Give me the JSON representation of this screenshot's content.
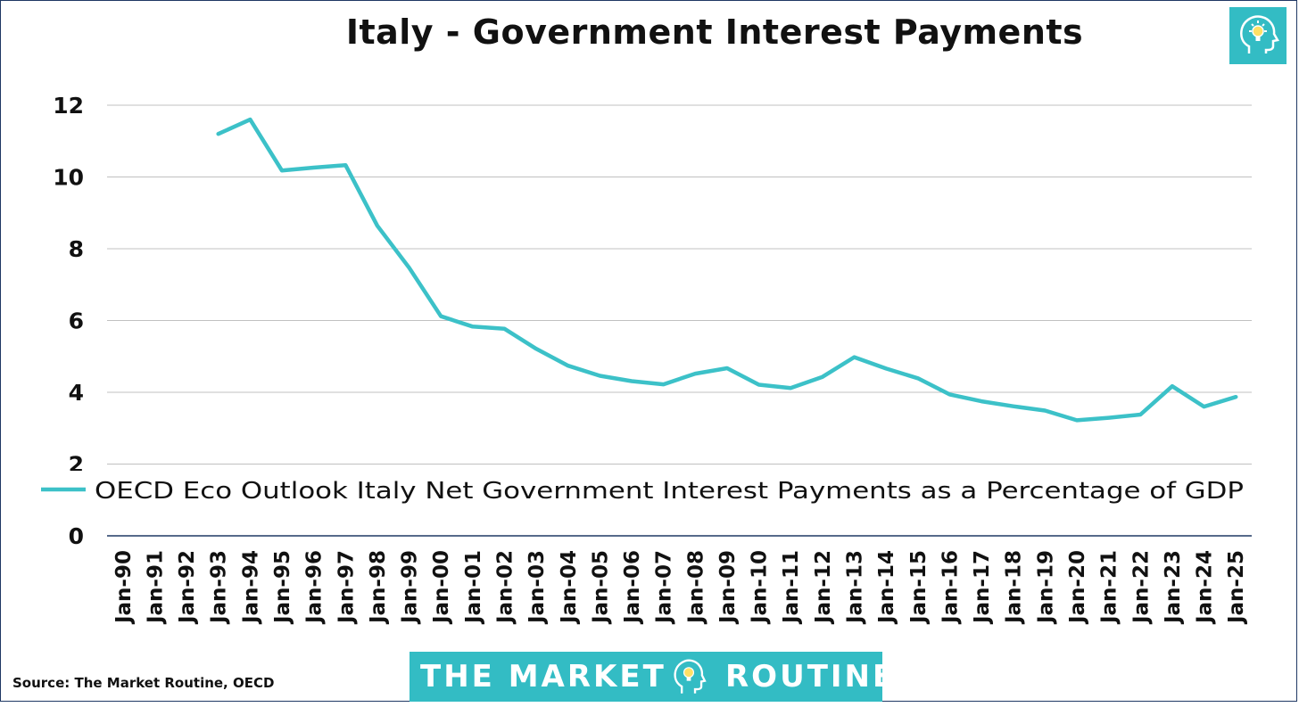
{
  "title": "Italy - Government Interest Payments",
  "source": "Source: The Market Routine, OECD",
  "brand": {
    "left": "THE MARKET",
    "right": "ROUTINE"
  },
  "colors": {
    "series": "#3cc1c8",
    "brand": "#33bcc4",
    "grid": "#c0c0c0",
    "axis": "#1f3864"
  },
  "icons": [
    "head-lightbulb-icon"
  ],
  "chart_data": {
    "type": "line",
    "title": "Italy - Government Interest Payments",
    "xlabel": "",
    "ylabel": "",
    "ylim": [
      0,
      12
    ],
    "yticks": [
      0,
      2,
      4,
      6,
      8,
      10,
      12
    ],
    "grid": true,
    "legend": "inside-bottom",
    "categories": [
      "Jan-90",
      "Jan-91",
      "Jan-92",
      "Jan-93",
      "Jan-94",
      "Jan-95",
      "Jan-96",
      "Jan-97",
      "Jan-98",
      "Jan-99",
      "Jan-00",
      "Jan-01",
      "Jan-02",
      "Jan-03",
      "Jan-04",
      "Jan-05",
      "Jan-06",
      "Jan-07",
      "Jan-08",
      "Jan-09",
      "Jan-10",
      "Jan-11",
      "Jan-12",
      "Jan-13",
      "Jan-14",
      "Jan-15",
      "Jan-16",
      "Jan-17",
      "Jan-18",
      "Jan-19",
      "Jan-20",
      "Jan-21",
      "Jan-22",
      "Jan-23",
      "Jan-24",
      "Jan-25"
    ],
    "series": [
      {
        "name": "OECD Eco Outlook Italy Net Government Interest Payments as a Percentage of GDP",
        "values": [
          null,
          null,
          null,
          11.2,
          11.6,
          10.18,
          10.26,
          10.33,
          8.64,
          7.47,
          6.12,
          5.83,
          5.77,
          5.21,
          4.74,
          4.46,
          4.31,
          4.22,
          4.52,
          4.67,
          4.21,
          4.12,
          4.43,
          4.98,
          4.66,
          4.39,
          3.94,
          3.75,
          3.61,
          3.49,
          3.22,
          3.29,
          3.38,
          4.17,
          3.6,
          3.87
        ]
      }
    ]
  }
}
